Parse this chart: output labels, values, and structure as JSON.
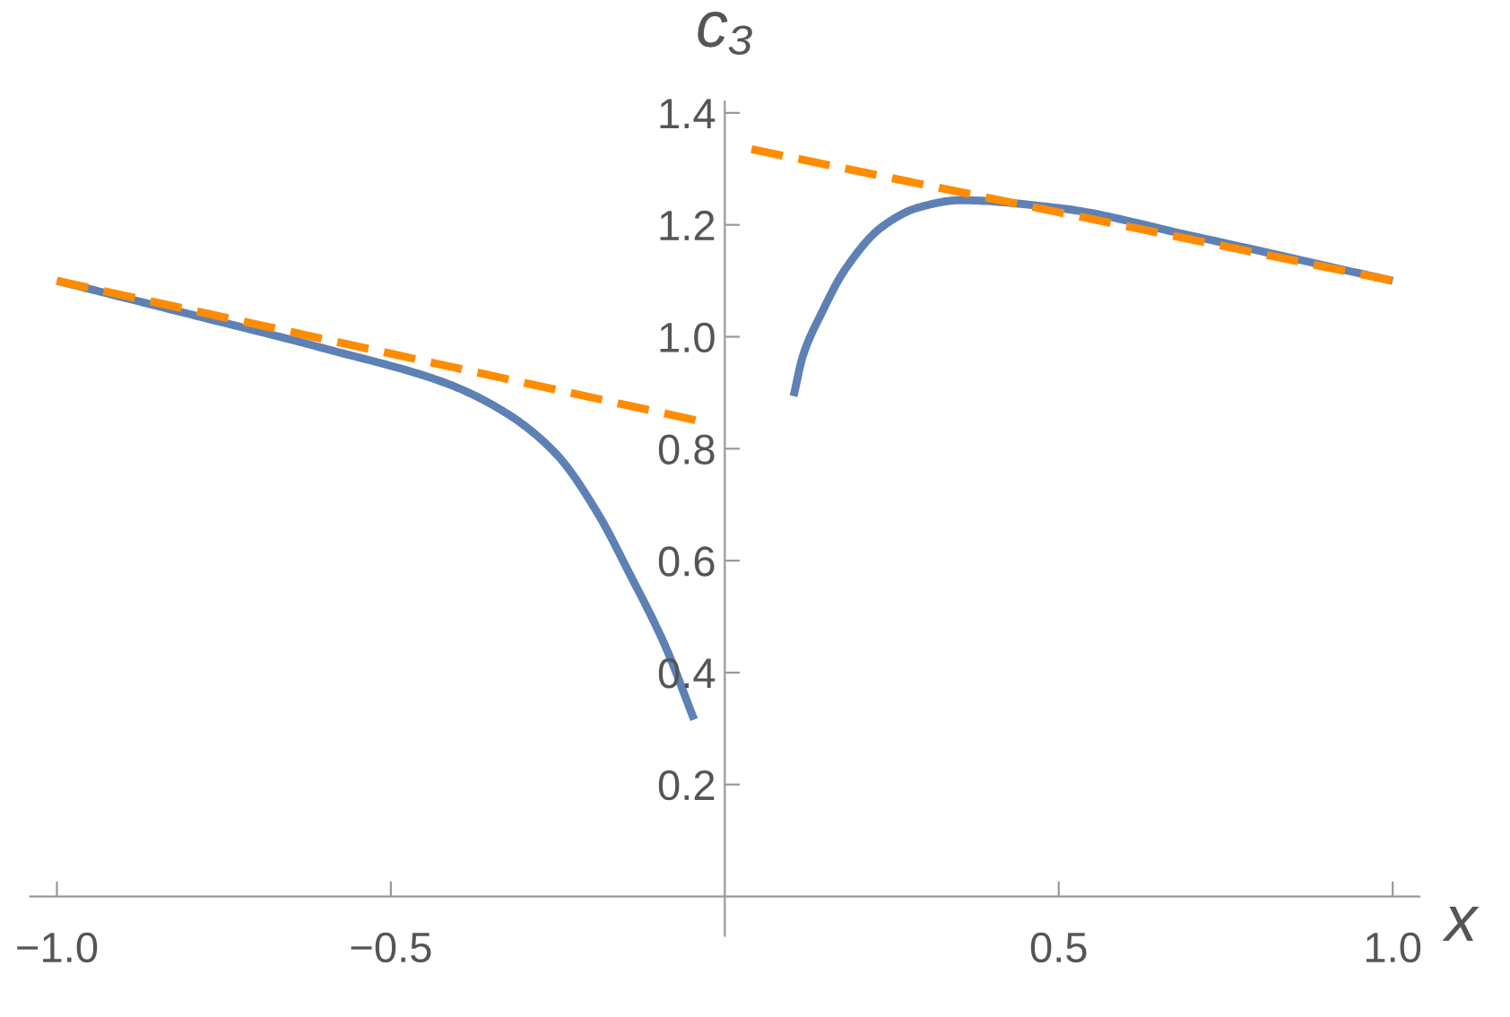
{
  "chart_data": {
    "type": "line",
    "xlabel": "x",
    "ylabel": "c₃",
    "series": [
      {
        "color": "#5e81b5",
        "line_style": "solid",
        "x": [
          -1.0,
          -0.8,
          -0.596,
          -0.415,
          -0.325,
          -0.252,
          -0.19,
          -0.144,
          -0.089,
          -0.046
        ],
        "values": [
          1.1,
          1.04,
          0.978,
          0.916,
          0.862,
          0.79,
          0.684,
          0.58,
          0.447,
          0.316
        ]
      },
      {
        "color": "#5e81b5",
        "line_style": "solid",
        "x": [
          0.103,
          0.117,
          0.144,
          0.18,
          0.236,
          0.29,
          0.352,
          0.5,
          0.7,
          1.0
        ],
        "values": [
          0.894,
          0.966,
          1.04,
          1.12,
          1.197,
          1.231,
          1.244,
          1.23,
          1.18,
          1.1
        ]
      },
      {
        "color": "#ff8c00",
        "line_style": "dashed",
        "x": [
          -1.0,
          -0.04
        ],
        "values": [
          1.1,
          0.85
        ]
      },
      {
        "color": "#ff8c00",
        "line_style": "dashed",
        "x": [
          0.04,
          1.0
        ],
        "values": [
          1.335,
          1.1
        ]
      }
    ],
    "xlim": [
      -1.04,
      1.04
    ],
    "ylim": [
      -0.07,
      1.42
    ],
    "xticks": [
      {
        "value": -1.0,
        "label": "−1.0"
      },
      {
        "value": -0.5,
        "label": "−0.5"
      },
      {
        "value": 0.5,
        "label": "0.5"
      },
      {
        "value": 1.0,
        "label": "1.0"
      }
    ],
    "yticks": [
      {
        "value": 0.2,
        "label": "0.2"
      },
      {
        "value": 0.4,
        "label": "0.4"
      },
      {
        "value": 0.6,
        "label": "0.6"
      },
      {
        "value": 0.8,
        "label": "0.8"
      },
      {
        "value": 1.0,
        "label": "1.0"
      },
      {
        "value": 1.2,
        "label": "1.2"
      },
      {
        "value": 1.4,
        "label": "1.4"
      }
    ],
    "grid": false
  }
}
